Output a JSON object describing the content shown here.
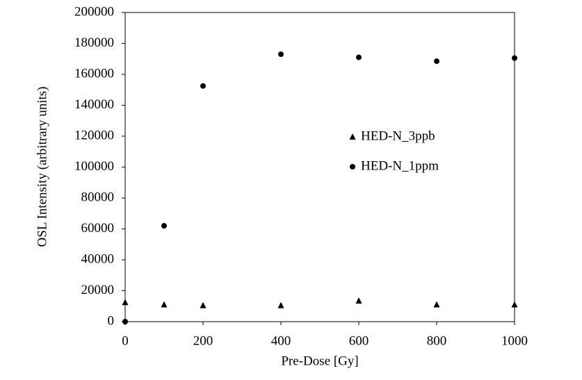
{
  "chart_data": {
    "type": "scatter",
    "x_label": "Pre-Dose [Gy]",
    "y_label": "OSL Intensity (arbitrary units)",
    "xlim": [
      0,
      1000
    ],
    "xticks": [
      0,
      200,
      400,
      600,
      800,
      1000
    ],
    "ylim": [
      0,
      200000
    ],
    "yticks": [
      0,
      20000,
      40000,
      60000,
      80000,
      100000,
      120000,
      140000,
      160000,
      180000,
      200000
    ],
    "grid": false,
    "legend": "center-right",
    "series": [
      {
        "name": "HED-N_3ppb",
        "color": "#000000",
        "marker": "triangle",
        "x": [
          0,
          100,
          200,
          400,
          600,
          800,
          1000
        ],
        "values": [
          12500,
          11000,
          10500,
          10500,
          13500,
          11000,
          11000
        ]
      },
      {
        "name": "HED-N_1ppm",
        "color": "#000000",
        "marker": "circle",
        "x": [
          0,
          100,
          200,
          400,
          600,
          800,
          1000
        ],
        "values": [
          0,
          62000,
          152500,
          173000,
          171000,
          168500,
          170500
        ]
      }
    ]
  }
}
